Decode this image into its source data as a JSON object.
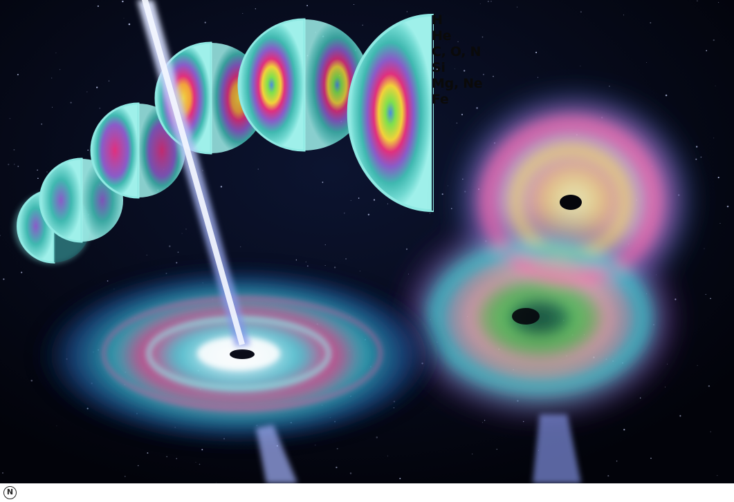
{
  "legend": {
    "labels": [
      "H",
      "He",
      "C, O, N",
      "Si",
      "Mg, Ne",
      "Fe"
    ]
  },
  "footer": {
    "mark": "N"
  },
  "colors": {
    "space": "#03040d",
    "shell_outer": "#7fe3df",
    "shell_teal": "#3fb8b0",
    "shell_purple": "#8a5cc8",
    "shell_magenta": "#e0307e",
    "shell_yellow": "#f2d23a",
    "shell_green": "#7fe04c",
    "core_blue": "#4a8ce0",
    "jet": "#b9c8ff"
  }
}
